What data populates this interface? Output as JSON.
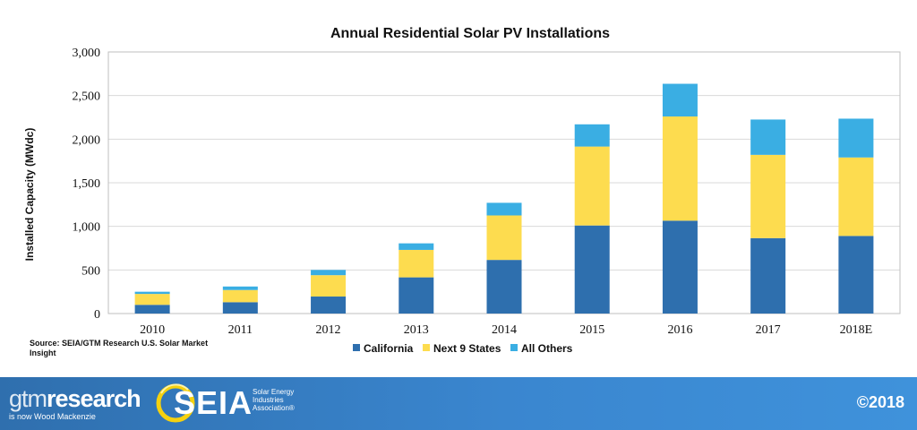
{
  "chart_data": {
    "type": "bar",
    "stacked": true,
    "title": "Annual Residential Solar PV Installations",
    "xlabel": "",
    "ylabel": "Installed Capacity (MWdc)",
    "ylim": [
      0,
      3000
    ],
    "yticks": [
      0,
      500,
      1000,
      1500,
      2000,
      2500,
      3000
    ],
    "ytick_labels": [
      "0",
      "500",
      "1,000",
      "1,500",
      "2,000",
      "2,500",
      "3,000"
    ],
    "grid": true,
    "legend_position": "bottom",
    "categories": [
      "2010",
      "2011",
      "2012",
      "2013",
      "2014",
      "2015",
      "2016",
      "2017",
      "2018E"
    ],
    "series": [
      {
        "name": "California",
        "color": "#2e6fae",
        "values": [
          100,
          130,
          195,
          415,
          615,
          1010,
          1065,
          865,
          890
        ]
      },
      {
        "name": "Next 9 States",
        "color": "#fddc4f",
        "values": [
          125,
          140,
          245,
          315,
          510,
          905,
          1195,
          955,
          900
        ]
      },
      {
        "name": "All Others",
        "color": "#3aaee3",
        "values": [
          25,
          40,
          60,
          75,
          145,
          255,
          375,
          405,
          445
        ]
      }
    ]
  },
  "source_text": "Source: SEIA/GTM Research U.S. Solar Market Insight",
  "footer": {
    "gtm_part1": "gtm",
    "gtm_part2": "research",
    "gtm_sub": "is now Wood Mackenzie",
    "seia_word": "SEIA",
    "seia_line1": "Solar Energy",
    "seia_line2": "Industries",
    "seia_line3": "Association®",
    "copyright": "©2018"
  },
  "colors": {
    "grid": "#d9d9d9",
    "plot_border": "#bfbfbf",
    "footer_blue": "#3a86cf",
    "seia_yellow": "#f5d10f"
  }
}
